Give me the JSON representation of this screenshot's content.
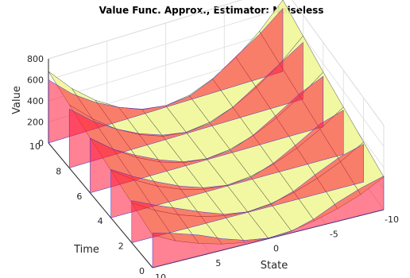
{
  "chart_data": {
    "type": "surface",
    "title": "Value Func. Approx., Estimator: Noiseless",
    "xlabel": "State",
    "ylabel": "Time",
    "zlabel": "Value",
    "x_ticks": [
      "10",
      "5",
      "0",
      "-5",
      "-10"
    ],
    "y_ticks": [
      "0",
      "2",
      "4",
      "6",
      "8",
      "10"
    ],
    "z_ticks": [
      "0",
      "200",
      "400",
      "600",
      "800"
    ],
    "xlim": [
      -10,
      10
    ],
    "ylim": [
      0,
      10
    ],
    "zlim": [
      0,
      800
    ],
    "grid": true,
    "series": [
      {
        "name": "",
        "kind": "approximation surface",
        "color": "#f1f79a",
        "edge_color": "#202020",
        "state": [
          -10,
          -8,
          -6,
          -4,
          -2,
          0,
          2,
          4,
          6,
          8,
          10
        ],
        "time": [
          0,
          2,
          4,
          6,
          8,
          10
        ],
        "value": [
          [
            310,
            200,
            120,
            60,
            20,
            5,
            20,
            60,
            120,
            200,
            310
          ],
          [
            380,
            250,
            150,
            75,
            25,
            5,
            25,
            75,
            150,
            250,
            380
          ],
          [
            450,
            300,
            180,
            90,
            30,
            8,
            30,
            90,
            180,
            300,
            450
          ],
          [
            520,
            350,
            210,
            105,
            35,
            10,
            35,
            105,
            210,
            350,
            520
          ],
          [
            600,
            400,
            240,
            120,
            40,
            12,
            40,
            120,
            240,
            400,
            600
          ],
          [
            680,
            450,
            270,
            135,
            45,
            15,
            45,
            135,
            270,
            450,
            680
          ]
        ]
      },
      {
        "name": "",
        "kind": "reference value slices",
        "color": "#ff1a3c",
        "edge_color": "#3a3ad0",
        "state": [
          -10,
          -8,
          -6,
          -4,
          -2,
          0,
          2,
          4,
          6,
          8,
          10
        ],
        "time": [
          0,
          2,
          4,
          6,
          8,
          10
        ],
        "value": [
          [
            320,
            260,
            180,
            80,
            15,
            5,
            40,
            110,
            200,
            270,
            330
          ],
          [
            360,
            300,
            200,
            90,
            20,
            5,
            40,
            120,
            210,
            300,
            400
          ],
          [
            420,
            350,
            220,
            100,
            20,
            8,
            45,
            120,
            220,
            330,
            460
          ],
          [
            480,
            380,
            240,
            110,
            25,
            10,
            45,
            125,
            230,
            350,
            520
          ],
          [
            540,
            400,
            260,
            120,
            30,
            12,
            50,
            130,
            240,
            380,
            560
          ],
          [
            600,
            420,
            280,
            130,
            35,
            15,
            50,
            135,
            250,
            400,
            600
          ]
        ]
      }
    ]
  }
}
